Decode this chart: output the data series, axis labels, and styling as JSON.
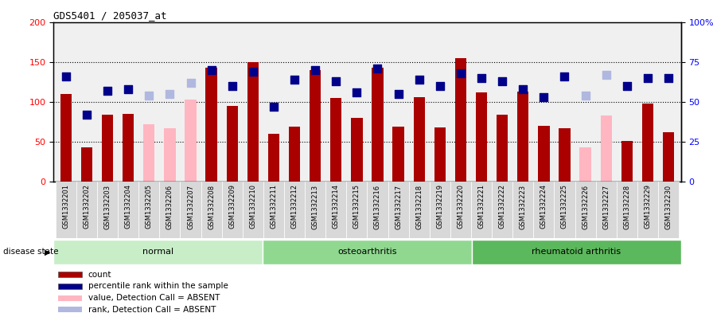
{
  "title": "GDS5401 / 205037_at",
  "samples": [
    "GSM1332201",
    "GSM1332202",
    "GSM1332203",
    "GSM1332204",
    "GSM1332205",
    "GSM1332206",
    "GSM1332207",
    "GSM1332208",
    "GSM1332209",
    "GSM1332210",
    "GSM1332211",
    "GSM1332212",
    "GSM1332213",
    "GSM1332214",
    "GSM1332215",
    "GSM1332216",
    "GSM1332217",
    "GSM1332218",
    "GSM1332219",
    "GSM1332220",
    "GSM1332221",
    "GSM1332222",
    "GSM1332223",
    "GSM1332224",
    "GSM1332225",
    "GSM1332226",
    "GSM1332227",
    "GSM1332228",
    "GSM1332229",
    "GSM1332230"
  ],
  "count_values": [
    110,
    43,
    84,
    85,
    72,
    67,
    103,
    143,
    95,
    150,
    60,
    69,
    140,
    105,
    80,
    143,
    69,
    106,
    68,
    155,
    112,
    84,
    113,
    70,
    67,
    43,
    83,
    51,
    98,
    62
  ],
  "rank_values": [
    66,
    42,
    57,
    58,
    54,
    55,
    62,
    70,
    60,
    69,
    47,
    64,
    70,
    63,
    56,
    71,
    55,
    64,
    60,
    68,
    65,
    63,
    58,
    53,
    66,
    54,
    67,
    60,
    65,
    65
  ],
  "absent_mask": [
    false,
    false,
    false,
    false,
    true,
    true,
    true,
    false,
    false,
    false,
    false,
    false,
    false,
    false,
    false,
    false,
    false,
    false,
    false,
    false,
    false,
    false,
    false,
    false,
    false,
    true,
    true,
    false,
    false,
    false
  ],
  "groups": [
    {
      "label": "normal",
      "start": 0,
      "end": 10,
      "color": "#C8EEC8"
    },
    {
      "label": "osteoarthritis",
      "start": 10,
      "end": 20,
      "color": "#90D890"
    },
    {
      "label": "rheumatoid arthritis",
      "start": 20,
      "end": 30,
      "color": "#5CB85C"
    }
  ],
  "bar_color_present": "#AA0000",
  "bar_color_absent": "#FFB6C1",
  "rank_color_present": "#00008B",
  "rank_color_absent": "#B0B8E0",
  "ylim_left": [
    0,
    200
  ],
  "ylim_right": [
    0,
    100
  ],
  "yticks_left": [
    0,
    50,
    100,
    150,
    200
  ],
  "yticks_right": [
    0,
    25,
    50,
    75,
    100
  ],
  "ytick_labels_right": [
    "0",
    "25",
    "50",
    "75",
    "100%"
  ],
  "bar_width": 0.55,
  "rank_marker_size": 45,
  "disease_state_label": "disease state",
  "legend_items": [
    {
      "label": "count",
      "color": "#AA0000"
    },
    {
      "label": "percentile rank within the sample",
      "color": "#00008B"
    },
    {
      "label": "value, Detection Call = ABSENT",
      "color": "#FFB6C1"
    },
    {
      "label": "rank, Detection Call = ABSENT",
      "color": "#B0B8E0"
    }
  ],
  "bg_color": "#F0F0F0",
  "xtick_bg_color": "#D8D8D8"
}
